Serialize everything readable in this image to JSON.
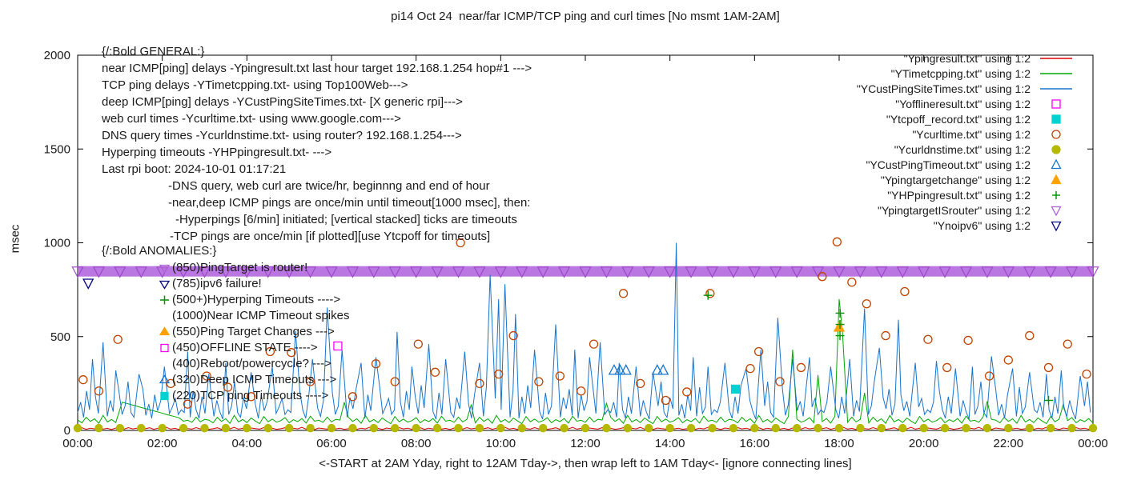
{
  "title": "pi14 Oct 24  near/far ICMP/TCP ping and curl times [No msmt 1AM-2AM]",
  "xlabel": "<-START at 2AM Yday, right to 12AM Tday->, then wrap left to 1AM Tday<- [ignore connecting lines]",
  "ylabel": "msec",
  "chart_data": {
    "type": "line",
    "xlim": [
      0,
      24
    ],
    "ylim": [
      0,
      2000
    ],
    "grid": false,
    "legend_position": "top-right",
    "x_tick_hours": [
      0,
      2,
      4,
      6,
      8,
      10,
      12,
      14,
      16,
      18,
      20,
      22,
      24
    ],
    "x_tick_labels": [
      "00:00",
      "02:00",
      "04:00",
      "06:00",
      "08:00",
      "10:00",
      "12:00",
      "14:00",
      "16:00",
      "18:00",
      "20:00",
      "22:00",
      "00:00"
    ],
    "y_ticks": [
      0,
      500,
      1000,
      1500,
      2000
    ],
    "legend": [
      {
        "label": "\"Ypingresult.txt\" using 1:2",
        "sample": "line",
        "color": "#e00000"
      },
      {
        "label": "\"YTimetcpping.txt\" using 1:2",
        "sample": "line",
        "color": "#00a800"
      },
      {
        "label": "\"YCustPingSiteTimes.txt\" using 1:2",
        "sample": "line",
        "color": "#1874cd"
      },
      {
        "label": "\"Yofflineresult.txt\" using 1:2",
        "sample": "square",
        "filled": false,
        "color": "#ff00ff"
      },
      {
        "label": "\"Ytcpoff_record.txt\" using 1:2",
        "sample": "square",
        "filled": true,
        "color": "#00d2d2"
      },
      {
        "label": "\"Ycurltime.txt\" using 1:2",
        "sample": "circle",
        "filled": false,
        "color": "#bf4400"
      },
      {
        "label": "\"Ycurldnstime.txt\" using 1:2",
        "sample": "circle",
        "filled": true,
        "color": "#b5b900"
      },
      {
        "label": "\"YCustPingTimeout.txt\" using 1:2",
        "sample": "triangle-up",
        "filled": false,
        "color": "#1874cd"
      },
      {
        "label": "\"Ypingtargetchange\" using 1:2",
        "sample": "triangle-up",
        "filled": true,
        "color": "#ffa200"
      },
      {
        "label": "\"YHPpingresult.txt\" using 1:2",
        "sample": "plus",
        "color": "#009000"
      },
      {
        "label": "\"YpingtargetISrouter\" using 1:2",
        "sample": "triangle-down",
        "filled": false,
        "color": "#ad5fd6"
      },
      {
        "label": "\"Ynoipv6\" using 1:2",
        "sample": "triangle-down",
        "filled": false,
        "color": "#000080"
      }
    ],
    "series": [
      {
        "id": "ypingtargetisrouter",
        "name": "YpingtargetISrouter",
        "type": "band",
        "color": "#b46be0",
        "edge_color": "#9b46c8",
        "y": 850,
        "x_start": 0,
        "x_end": 24,
        "tri_step": 0.5
      },
      {
        "id": "ypingresult",
        "name": "Ypingresult.txt",
        "type": "line",
        "color": "#e00000",
        "step": 0.1,
        "pattern": [
          9,
          14,
          6,
          12,
          8,
          16,
          7,
          11,
          5,
          13,
          10,
          7,
          15,
          8,
          12,
          6
        ],
        "spikes": []
      },
      {
        "id": "ytimetcpping",
        "name": "YTimetcpping.txt",
        "type": "line",
        "color": "#00a800",
        "step": 0.1,
        "pattern": [
          55,
          40,
          70,
          48,
          62,
          38,
          80,
          45,
          58,
          42,
          66,
          50,
          36,
          74,
          46,
          60,
          44,
          52,
          68,
          41,
          57,
          47,
          63,
          39,
          76,
          49,
          54,
          43,
          71,
          45,
          59
        ],
        "spikes": [
          [
            1.05,
            150
          ],
          [
            1.2,
            141
          ],
          [
            1.35,
            132
          ],
          [
            1.5,
            122
          ],
          [
            1.65,
            113
          ],
          [
            1.8,
            104
          ],
          [
            1.95,
            95
          ],
          [
            2.1,
            85
          ],
          [
            2.25,
            76
          ],
          [
            2.4,
            67
          ],
          [
            6.3,
            150
          ],
          [
            9.3,
            135
          ],
          [
            12.5,
            145
          ],
          [
            16.9,
            430
          ],
          [
            17.5,
            295
          ],
          [
            18.0,
            700
          ],
          [
            18.08,
            520
          ],
          [
            18.6,
            200
          ],
          [
            21.5,
            155
          ],
          [
            23.3,
            140
          ]
        ]
      },
      {
        "id": "ycustpingsitetimes",
        "name": "YCustPingSiteTimes.txt",
        "type": "line",
        "color": "#1874cd",
        "step": 0.07,
        "pattern": [
          95,
          150,
          70,
          210,
          110,
          65,
          180,
          90,
          240,
          120,
          75,
          160,
          100,
          60,
          200,
          85,
          130,
          260,
          95,
          70,
          175,
          115,
          220,
          80,
          140,
          65,
          190,
          105,
          155,
          75,
          230,
          90,
          125,
          170,
          85,
          110
        ],
        "spikes": [
          [
            0.35,
            380
          ],
          [
            0.6,
            470
          ],
          [
            0.9,
            320
          ],
          [
            1.45,
            300
          ],
          [
            2.05,
            340
          ],
          [
            2.6,
            420
          ],
          [
            3.1,
            300
          ],
          [
            3.5,
            360
          ],
          [
            4.1,
            310
          ],
          [
            4.6,
            340
          ],
          [
            5.15,
            530
          ],
          [
            5.55,
            380
          ],
          [
            5.9,
            655
          ],
          [
            6.25,
            430
          ],
          [
            6.7,
            360
          ],
          [
            7.05,
            390
          ],
          [
            7.55,
            525
          ],
          [
            7.9,
            340
          ],
          [
            8.3,
            460
          ],
          [
            8.7,
            380
          ],
          [
            9.15,
            420
          ],
          [
            9.5,
            360
          ],
          [
            9.75,
            830
          ],
          [
            9.95,
            700
          ],
          [
            10.1,
            780
          ],
          [
            10.35,
            620
          ],
          [
            10.8,
            430
          ],
          [
            11.3,
            565
          ],
          [
            11.75,
            430
          ],
          [
            12.1,
            390
          ],
          [
            12.35,
            470
          ],
          [
            12.8,
            360
          ],
          [
            13.2,
            340
          ],
          [
            13.6,
            310
          ],
          [
            14.15,
            1000
          ],
          [
            14.55,
            390
          ],
          [
            14.9,
            340
          ],
          [
            15.3,
            360
          ],
          [
            15.8,
            330
          ],
          [
            16.15,
            430
          ],
          [
            16.55,
            600
          ],
          [
            16.9,
            380
          ],
          [
            17.3,
            390
          ],
          [
            17.8,
            340
          ],
          [
            18.25,
            380
          ],
          [
            18.6,
            650
          ],
          [
            18.95,
            440
          ],
          [
            19.4,
            590
          ],
          [
            19.8,
            360
          ],
          [
            20.3,
            370
          ],
          [
            20.75,
            330
          ],
          [
            21.15,
            340
          ],
          [
            21.6,
            395
          ],
          [
            22.1,
            330
          ],
          [
            22.5,
            310
          ],
          [
            22.9,
            300
          ],
          [
            23.25,
            320
          ],
          [
            23.7,
            290
          ]
        ]
      },
      {
        "id": "ycurldnstime",
        "name": "Ycurldnstime.txt",
        "type": "points-row",
        "marker": "circle",
        "filled": true,
        "color": "#b5b900",
        "size": 4.6,
        "row": {
          "x_start": 0,
          "x_end": 24,
          "step": 0.5,
          "y": 12
        }
      },
      {
        "id": "ycurltime",
        "name": "Ycurltime.txt",
        "type": "points",
        "marker": "circle",
        "filled": false,
        "color": "#bf4400",
        "size": 5,
        "points": [
          [
            0.13,
            270
          ],
          [
            0.5,
            210
          ],
          [
            0.95,
            485
          ],
          [
            2.2,
            250
          ],
          [
            2.6,
            140
          ],
          [
            3.05,
            290
          ],
          [
            3.55,
            230
          ],
          [
            4.1,
            180
          ],
          [
            4.55,
            420
          ],
          [
            5.05,
            415
          ],
          [
            5.5,
            260
          ],
          [
            6.5,
            180
          ],
          [
            7.05,
            355
          ],
          [
            7.5,
            260
          ],
          [
            8.05,
            460
          ],
          [
            8.45,
            310
          ],
          [
            9.05,
            1000
          ],
          [
            9.5,
            250
          ],
          [
            9.95,
            300
          ],
          [
            10.3,
            505
          ],
          [
            10.9,
            260
          ],
          [
            11.4,
            290
          ],
          [
            11.9,
            210
          ],
          [
            12.2,
            460
          ],
          [
            12.9,
            730
          ],
          [
            13.3,
            250
          ],
          [
            13.9,
            160
          ],
          [
            14.4,
            205
          ],
          [
            14.95,
            730
          ],
          [
            15.9,
            330
          ],
          [
            16.1,
            420
          ],
          [
            16.6,
            260
          ],
          [
            17.1,
            335
          ],
          [
            17.6,
            820
          ],
          [
            17.95,
            1005
          ],
          [
            18.3,
            790
          ],
          [
            18.65,
            675
          ],
          [
            19.1,
            505
          ],
          [
            19.55,
            740
          ],
          [
            20.1,
            485
          ],
          [
            20.55,
            335
          ],
          [
            21.05,
            480
          ],
          [
            21.55,
            290
          ],
          [
            22.0,
            375
          ],
          [
            22.5,
            505
          ],
          [
            22.95,
            335
          ],
          [
            23.4,
            460
          ],
          [
            23.85,
            300
          ]
        ]
      },
      {
        "id": "yofflineresult",
        "name": "Yofflineresult.txt",
        "type": "points",
        "marker": "square",
        "filled": false,
        "color": "#ff00ff",
        "size": 5,
        "points": [
          [
            6.15,
            450
          ]
        ]
      },
      {
        "id": "ytcpoff_record",
        "name": "Ytcpoff_record.txt",
        "type": "points",
        "marker": "square",
        "filled": true,
        "color": "#00d2d2",
        "size": 5,
        "points": [
          [
            15.55,
            220
          ]
        ]
      },
      {
        "id": "ycustpingtimeout",
        "name": "YCustPingTimeout.txt",
        "type": "points",
        "marker": "triangle-up",
        "filled": false,
        "color": "#1874cd",
        "size": 5.5,
        "points": [
          [
            12.68,
            320
          ],
          [
            12.82,
            320
          ],
          [
            12.96,
            320
          ],
          [
            13.7,
            320
          ],
          [
            13.84,
            320
          ]
        ]
      },
      {
        "id": "ypingtargetchange",
        "name": "Ypingtargetchange",
        "type": "points",
        "marker": "triangle-up",
        "filled": true,
        "color": "#ffa200",
        "size": 5.5,
        "points": [
          [
            18.0,
            550
          ]
        ]
      },
      {
        "id": "yhppingresult",
        "name": "YHPpingresult.txt",
        "type": "points",
        "marker": "plus",
        "color": "#009000",
        "size": 5.5,
        "points": [
          [
            14.9,
            720
          ],
          [
            18.02,
            505
          ],
          [
            18.02,
            565
          ],
          [
            18.02,
            625
          ],
          [
            22.95,
            160
          ]
        ]
      },
      {
        "id": "ynoipv6",
        "name": "Ynoipv6",
        "type": "points",
        "marker": "triangle-down",
        "filled": false,
        "color": "#000080",
        "size": 5.5,
        "points": [
          [
            0.25,
            785
          ]
        ]
      }
    ],
    "annotations": {
      "general": [
        {
          "text": "{/:Bold GENERAL:}"
        },
        {
          "text": "near ICMP[ping] delays -Ypingresult.txt last hour target 192.168.1.254 hop#1 --->"
        },
        {
          "text": "TCP ping delays -YTimetcpping.txt- using Top100Web--->"
        },
        {
          "text": "deep ICMP[ping] delays -YCustPingSiteTimes.txt- [X generic rpi]--->"
        },
        {
          "text": "web curl times -Ycurltime.txt- using www.google.com--->"
        },
        {
          "text": "DNS query times -Ycurldnstime.txt- using router? 192.168.1.254--->"
        },
        {
          "text": "Hyperping timeouts -YHPpingresult.txt- --->"
        },
        {
          "text": "Last rpi boot: 2024-10-01 01:17:21"
        },
        {
          "text": "-DNS query, web curl are twice/hr, beginnng and end of hour",
          "indent": 83
        },
        {
          "text": "-near,deep ICMP pings are once/min until timeout[1000 msec], then:",
          "indent": 83
        },
        {
          "text": "-Hyperpings [6/min] initiated; [vertical stacked] ticks are timeouts",
          "indent": 92
        },
        {
          "text": "-TCP pings are once/min [if plotted][use Ytcpoff for timeouts]",
          "indent": 85
        }
      ],
      "anomalies_title": "{/:Bold ANOMALIES:}",
      "anomalies": [
        {
          "marker": "triangle-down",
          "color": "#ad5fd6",
          "filled": false,
          "text": "(850)PingTarget is router!"
        },
        {
          "marker": "triangle-down",
          "color": "#000080",
          "filled": false,
          "text": "(785)ipv6 failure!"
        },
        {
          "marker": "plus",
          "color": "#009000",
          "text": "(500+)Hyperping Timeouts ---->"
        },
        {
          "marker": null,
          "text": "(1000)Near ICMP Timeout spikes"
        },
        {
          "marker": "triangle-up",
          "color": "#ffa200",
          "filled": true,
          "text": "(550)Ping Target Changes --->"
        },
        {
          "marker": "square",
          "color": "#ff00ff",
          "filled": false,
          "text": "(450)OFFLINE STATE ---->"
        },
        {
          "marker": null,
          "text": "(400)Reboot/powercycle? --->"
        },
        {
          "marker": "triangle-up",
          "color": "#1874cd",
          "filled": false,
          "text": "(320)Deep ICMP Timeouts --->"
        },
        {
          "marker": "square",
          "color": "#00d2d2",
          "filled": true,
          "text": "(220)TCP ping Timeouts ---->"
        }
      ]
    }
  }
}
